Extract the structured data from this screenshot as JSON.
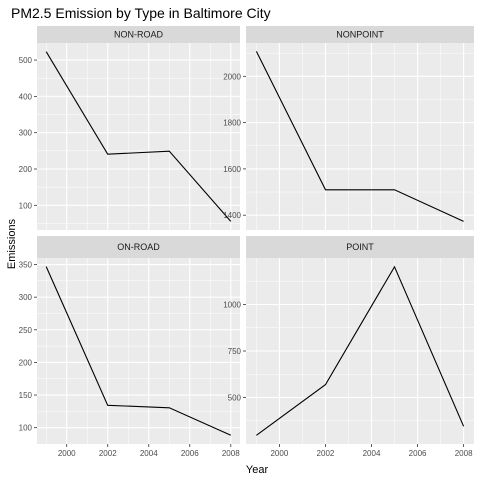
{
  "chart_data": {
    "type": "line",
    "title": "PM2.5 Emission by Type in Baltimore City",
    "xlabel": "Year",
    "ylabel": "Emissions",
    "x_ticks": [
      2000,
      2002,
      2004,
      2006,
      2008
    ],
    "xlim": [
      1998.55,
      2008.45
    ],
    "grid": true,
    "legend": "none",
    "colors": {
      "panel_bg": "#ebebeb",
      "grid": "#ffffff",
      "strip_bg": "#d9d9d9",
      "line": "#000000",
      "tick": "#333333"
    },
    "panels": [
      {
        "name": "NON-ROAD",
        "x": [
          1999,
          2002,
          2005,
          2008
        ],
        "values": [
          522.94,
          240.85,
          248.93,
          55.82
        ],
        "ylim": [
          32,
          547
        ],
        "y_ticks": [
          100,
          200,
          300,
          400,
          500
        ]
      },
      {
        "name": "NONPOINT",
        "x": [
          1999,
          2002,
          2005,
          2008
        ],
        "values": [
          2107.63,
          1509.5,
          1509.5,
          1373.21
        ],
        "ylim": [
          1336,
          2144
        ],
        "y_ticks": [
          1400,
          1600,
          1800,
          2000
        ]
      },
      {
        "name": "ON-ROAD",
        "x": [
          1999,
          2002,
          2005,
          2008
        ],
        "values": [
          346.82,
          134.31,
          130.43,
          88.28
        ],
        "ylim": [
          75,
          360
        ],
        "y_ticks": [
          100,
          150,
          200,
          250,
          300,
          350
        ]
      },
      {
        "name": "POINT",
        "x": [
          1999,
          2002,
          2005,
          2008
        ],
        "values": [
          296.8,
          569.26,
          1202.49,
          344.98
        ],
        "ylim": [
          250,
          1250
        ],
        "y_ticks": [
          500,
          750,
          1000
        ]
      }
    ]
  }
}
